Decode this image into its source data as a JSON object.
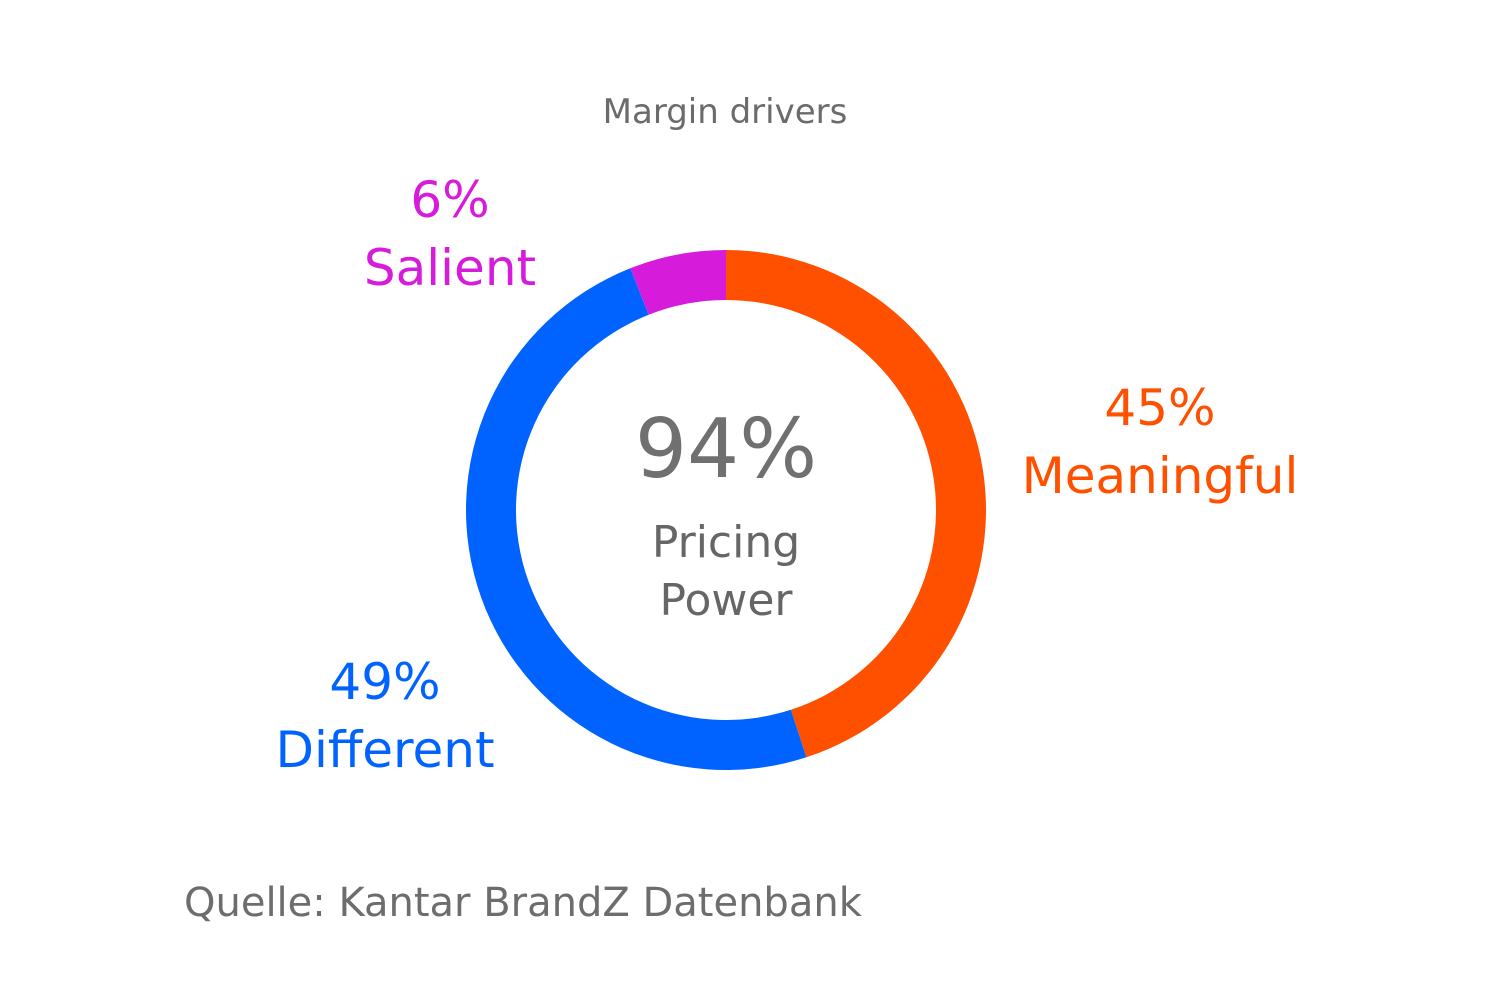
{
  "chart_data": {
    "type": "pie",
    "variant": "donut",
    "title": "Margin drivers",
    "center_value": "94%",
    "center_label_lines": [
      "Pricing",
      "Power"
    ],
    "slices": [
      {
        "name": "Meaningful",
        "value": 45,
        "display": "45%",
        "color": "#ff5000"
      },
      {
        "name": "Different",
        "value": 49,
        "display": "49%",
        "color": "#0063ff"
      },
      {
        "name": "Salient",
        "value": 6,
        "display": "6%",
        "color": "#d61bdb"
      }
    ]
  },
  "source_note": "Quelle: Kantar BrandZ Datenbank"
}
